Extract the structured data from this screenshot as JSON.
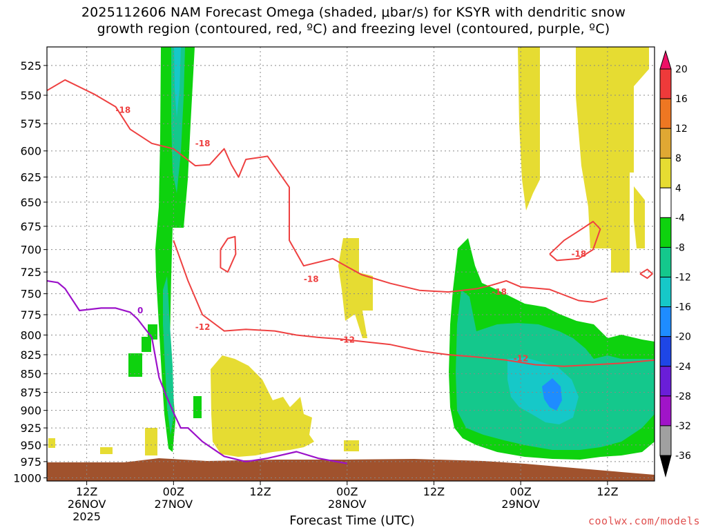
{
  "title_line1": "2025112606 NAM Forecast Omega (shaded, μbar/s) for KSYR with dendritic snow",
  "title_line2": "growth region (contoured, red, ºC) and freezing level (contoured, purple, ºC)",
  "xlabel": "Forecast Time (UTC)",
  "credit": "coolwx.com/models",
  "chart_data": {
    "type": "time-height",
    "x_ticks": [
      {
        "hour": 18,
        "label1": "12Z",
        "label2": "26NOV",
        "label3": "2025"
      },
      {
        "hour": 30,
        "label1": "00Z",
        "label2": "27NOV",
        "label3": ""
      },
      {
        "hour": 42,
        "label1": "12Z",
        "label2": "",
        "label3": ""
      },
      {
        "hour": 54,
        "label1": "00Z",
        "label2": "28NOV",
        "label3": ""
      },
      {
        "hour": 66,
        "label1": "12Z",
        "label2": "",
        "label3": ""
      },
      {
        "hour": 78,
        "label1": "00Z",
        "label2": "29NOV",
        "label3": ""
      },
      {
        "hour": 90,
        "label1": "12Z",
        "label2": "",
        "label3": ""
      }
    ],
    "xlim": [
      12.5,
      96.5
    ],
    "y_ticks": [
      525,
      550,
      575,
      600,
      625,
      650,
      675,
      700,
      725,
      750,
      775,
      800,
      825,
      850,
      875,
      900,
      925,
      950,
      975,
      1000
    ],
    "ylim": [
      510,
      1005
    ],
    "y_scale": "log-pressure",
    "colorbar": {
      "labels": [
        "20",
        "16",
        "12",
        "8",
        "4",
        "-4",
        "-8",
        "-12",
        "-16",
        "-20",
        "-24",
        "-28",
        "-32",
        "-36"
      ],
      "colors": [
        "#ee1166",
        "#ee3a3a",
        "#ee7722",
        "#e0a833",
        "#e6dc32",
        "#ffffff",
        "#0ed20e",
        "#14c88c",
        "#16c8c8",
        "#1e8cff",
        "#1e46e6",
        "#6a1ed8",
        "#a014c8",
        "#a0a0a0",
        "#000000"
      ]
    },
    "freezing_level_0C": {
      "color": "#9b11c9",
      "label": "0",
      "points": [
        [
          12.5,
          735
        ],
        [
          14,
          737
        ],
        [
          15,
          744
        ],
        [
          17,
          770
        ],
        [
          20,
          767
        ],
        [
          22,
          767
        ],
        [
          24,
          772
        ],
        [
          25,
          780
        ],
        [
          27,
          803
        ],
        [
          28,
          855
        ],
        [
          29,
          880
        ],
        [
          30,
          903
        ],
        [
          31,
          925
        ],
        [
          32,
          925
        ],
        [
          34,
          945
        ],
        [
          37,
          967
        ],
        [
          40,
          975
        ],
        [
          43,
          970
        ],
        [
          47,
          960
        ],
        [
          50,
          970
        ],
        [
          54,
          978
        ]
      ]
    },
    "dgz_isotherms": [
      {
        "value": -18,
        "color": "#ee4040",
        "labels": [
          "-18",
          "-18",
          "-18",
          "-18",
          "-18"
        ],
        "points": [
          [
            12.5,
            546
          ],
          [
            15,
            537
          ],
          [
            19,
            549
          ],
          [
            22,
            560
          ],
          [
            24,
            580
          ],
          [
            27,
            593
          ],
          [
            30,
            598
          ],
          [
            33,
            614
          ],
          [
            35,
            613
          ],
          [
            37,
            598
          ],
          [
            38,
            613
          ],
          [
            39,
            625
          ],
          [
            40,
            608
          ],
          [
            43,
            605
          ],
          [
            46,
            635
          ],
          [
            46,
            690
          ],
          [
            48,
            718
          ],
          [
            52,
            710
          ],
          [
            56,
            728
          ],
          [
            60,
            738
          ],
          [
            64,
            746
          ],
          [
            68,
            748
          ],
          [
            72,
            744
          ],
          [
            74,
            740
          ],
          [
            76,
            735
          ],
          [
            78,
            742
          ],
          [
            82,
            745
          ],
          [
            86,
            758
          ],
          [
            88,
            760
          ],
          [
            90,
            755
          ]
        ]
      },
      {
        "value": -12,
        "color": "#ee4040",
        "labels": [
          "-12",
          "-12",
          "-12"
        ],
        "points": [
          [
            30,
            690
          ],
          [
            32,
            735
          ],
          [
            34,
            775
          ],
          [
            37,
            795
          ],
          [
            40,
            793
          ],
          [
            44,
            795
          ],
          [
            47,
            800
          ],
          [
            50,
            803
          ],
          [
            53,
            805
          ],
          [
            56,
            808
          ],
          [
            60,
            812
          ],
          [
            64,
            820
          ],
          [
            68,
            825
          ],
          [
            72,
            828
          ],
          [
            76,
            832
          ],
          [
            80,
            838
          ],
          [
            84,
            840
          ],
          [
            88,
            838
          ],
          [
            92,
            836
          ],
          [
            96.5,
            832
          ]
        ]
      }
    ],
    "omega_regions": [
      {
        "value_band": "-4 to -8",
        "color": "#0ed20e",
        "name": "main-green-column"
      },
      {
        "value_band": "4 to 8",
        "color": "#e6dc32",
        "name": "positive-omega-areas"
      },
      {
        "value_band": "-8 to -12",
        "color": "#14c88c",
        "name": "moderate-upward-motion"
      },
      {
        "value_band": "-12 to -16",
        "color": "#16c8c8",
        "name": "strong-upward-motion"
      },
      {
        "value_band": "-16 to -20",
        "color": "#1e8cff",
        "name": "strongest-upward-motion"
      }
    ],
    "terrain_color": "#a0522d"
  }
}
